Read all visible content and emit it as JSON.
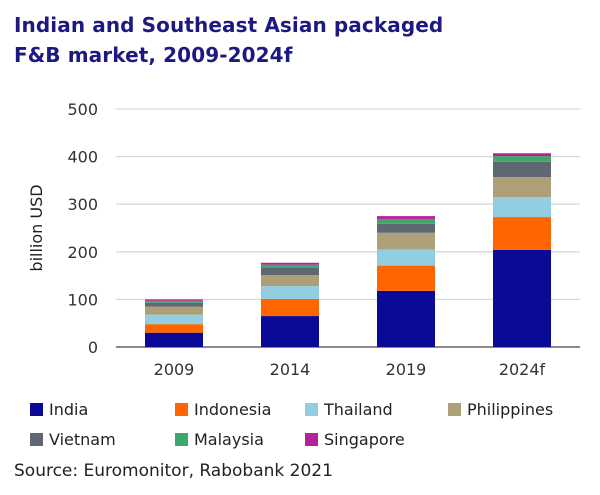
{
  "title_lines": [
    "Indian and Southeast Asian packaged",
    "F&B market, 2009-2024f"
  ],
  "source": "Source: Euromonitor, Rabobank 2021",
  "chart_data": {
    "type": "bar",
    "stacked": true,
    "title": "Indian and Southeast Asian packaged F&B market, 2009-2024f",
    "xlabel": "",
    "ylabel": "billion USD",
    "ylim": [
      0,
      500
    ],
    "yticks": [
      0,
      100,
      200,
      300,
      400,
      500
    ],
    "grid": true,
    "legend_position": "bottom",
    "categories": [
      "2009",
      "2014",
      "2019",
      "2024f"
    ],
    "series": [
      {
        "name": "India",
        "color": "#0a0a96",
        "values": [
          30,
          65,
          118,
          204
        ]
      },
      {
        "name": "Indonesia",
        "color": "#ff6600",
        "values": [
          18,
          36,
          53,
          69
        ]
      },
      {
        "name": "Thailand",
        "color": "#92cde0",
        "values": [
          20,
          27,
          34,
          42
        ]
      },
      {
        "name": "Philippines",
        "color": "#ad9f77",
        "values": [
          17,
          23,
          35,
          42
        ]
      },
      {
        "name": "Vietnam",
        "color": "#5e6772",
        "values": [
          8,
          15,
          19,
          32
        ]
      },
      {
        "name": "Malaysia",
        "color": "#3ea86a",
        "values": [
          4,
          7,
          10,
          12
        ]
      },
      {
        "name": "Singapore",
        "color": "#b8209a",
        "values": [
          3,
          4,
          6,
          6
        ]
      }
    ]
  }
}
